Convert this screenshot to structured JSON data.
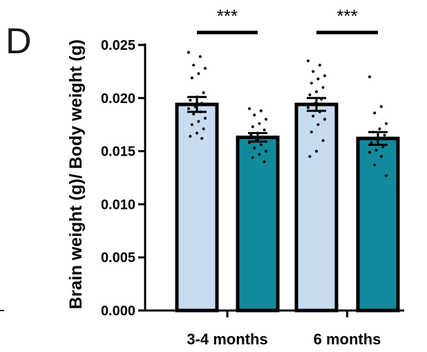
{
  "panel_label": "D",
  "colors": {
    "group_a": "#c9dbef",
    "group_b": "#138a9c",
    "stroke": "#000000",
    "dot": "#111111"
  },
  "chart_data": {
    "type": "bar",
    "title": "",
    "xlabel": "",
    "ylabel": "Brain weight (g)/ Body weight (g)",
    "ylim": [
      0,
      0.025
    ],
    "yticks": [
      "0.000",
      "0.005",
      "0.010",
      "0.015",
      "0.020",
      "0.025"
    ],
    "categories": [
      "3-4 months",
      "6 months"
    ],
    "series": [
      {
        "values": [
          0.0194,
          0.0194
        ],
        "sem": [
          0.0007,
          0.0006
        ],
        "points": [
          [
            0.0243,
            0.0239,
            0.0231,
            0.0228,
            0.0223,
            0.0219,
            0.0205,
            0.0201,
            0.0198,
            0.0195,
            0.0192,
            0.019,
            0.0187,
            0.0185,
            0.0181,
            0.0178,
            0.0175,
            0.0171,
            0.0167,
            0.0164,
            0.0162
          ],
          [
            0.0235,
            0.0231,
            0.0225,
            0.0221,
            0.0218,
            0.0214,
            0.021,
            0.0206,
            0.0203,
            0.0199,
            0.0195,
            0.0191,
            0.0187,
            0.0183,
            0.018,
            0.0175,
            0.0168,
            0.016,
            0.015,
            0.0145
          ]
        ]
      },
      {
        "values": [
          0.0163,
          0.0162
        ],
        "sem": [
          0.0004,
          0.0006
        ],
        "points": [
          [
            0.019,
            0.0188,
            0.0184,
            0.018,
            0.0176,
            0.0173,
            0.017,
            0.0167,
            0.0165,
            0.0163,
            0.016,
            0.0158,
            0.0156,
            0.0153,
            0.015,
            0.0147,
            0.0144,
            0.014
          ],
          [
            0.022,
            0.0192,
            0.0186,
            0.0176,
            0.0171,
            0.0168,
            0.0165,
            0.0162,
            0.0158,
            0.0154,
            0.0151,
            0.0149,
            0.0145,
            0.0137,
            0.0127
          ]
        ]
      }
    ],
    "annotations": [
      {
        "category_index": 0,
        "text": "***"
      },
      {
        "category_index": 1,
        "text": "***"
      }
    ]
  }
}
